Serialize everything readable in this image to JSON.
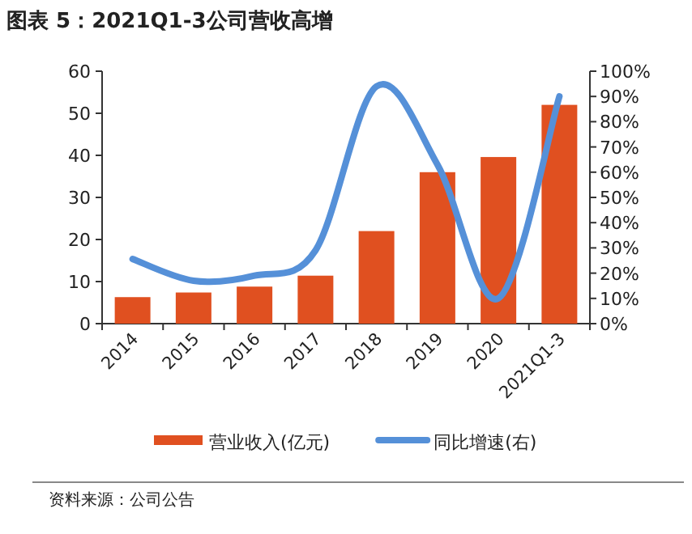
{
  "chart_data": {
    "type": "bar",
    "title": "图表 5：2021Q1-3公司营收高增",
    "categories": [
      "2014",
      "2015",
      "2016",
      "2017",
      "2018",
      "2019",
      "2020",
      "2021Q1-3"
    ],
    "series": [
      {
        "name": "营业收入(亿元)",
        "color": "#e05020",
        "values": [
          6.3,
          7.4,
          8.8,
          11.4,
          22.0,
          36.0,
          39.6,
          52.0
        ]
      },
      {
        "name": "同比增速(右)",
        "type": "line",
        "axis": "y2",
        "color": "#5590d8",
        "values": [
          25.6,
          17,
          19,
          29,
          94,
          63,
          10,
          90
        ]
      }
    ],
    "ylim": [
      0,
      60
    ],
    "yticks": [
      0,
      10,
      20,
      30,
      40,
      50,
      60
    ],
    "y2lim": [
      0,
      100
    ],
    "y2ticks": [
      {
        "value": 0,
        "label": "0%"
      },
      {
        "value": 10,
        "label": "10%"
      },
      {
        "value": 20,
        "label": "20%"
      },
      {
        "value": 30,
        "label": "30%"
      },
      {
        "value": 40,
        "label": "40%"
      },
      {
        "value": 50,
        "label": "50%"
      },
      {
        "value": 60,
        "label": "60%"
      },
      {
        "value": 70,
        "label": "70%"
      },
      {
        "value": 80,
        "label": "80%"
      },
      {
        "value": 90,
        "label": "90%"
      },
      {
        "value": 100,
        "label": "100%"
      }
    ],
    "legend": "bottom",
    "annotations": [
      "资料来源：公司公告"
    ]
  }
}
